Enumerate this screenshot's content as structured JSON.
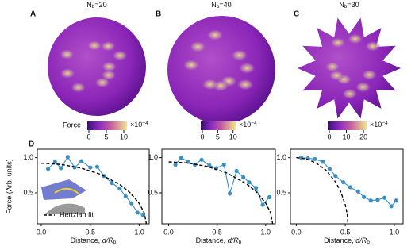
{
  "panels": [
    {
      "label": "A",
      "title": [
        "N",
        "b",
        "=20"
      ]
    },
    {
      "label": "B",
      "title": [
        "N",
        "b",
        "=40"
      ]
    },
    {
      "label": "C",
      "title": [
        "N",
        "b",
        "=30"
      ]
    }
  ],
  "colorbars": [
    {
      "label": "Force",
      "exponent": [
        "×10",
        "−4"
      ],
      "ticks": [
        0,
        5,
        10
      ]
    },
    {
      "exponent": [
        "×10",
        "−4"
      ],
      "ticks": [
        0,
        5,
        10
      ]
    },
    {
      "exponent": [
        "×10",
        "−4"
      ],
      "ticks": [
        0,
        10,
        20
      ]
    }
  ],
  "panel_d_label": "D",
  "chart_data": [
    {
      "type": "line",
      "ylabel": "Force (Arb. units)",
      "xlabel": [
        "Distance, ",
        "d/R",
        "b"
      ],
      "xlim": [
        -0.04,
        1.1
      ],
      "ylim": [
        0.06,
        1.12
      ],
      "xticks": [
        {
          "value": 0,
          "label": "0.0"
        },
        0.5,
        {
          "value": 1,
          "label": "1.0"
        }
      ],
      "yticks": [
        0.5,
        {
          "value": 1,
          "label": "1.0"
        }
      ],
      "legend": "lower left",
      "series": [
        {
          "color": "#3a8fc4",
          "marker": true,
          "x": [
            0.07,
            0.14,
            0.2,
            0.27,
            0.34,
            0.41,
            0.5,
            0.57,
            0.64,
            0.72,
            0.8,
            0.86,
            0.92,
            0.98,
            1.04
          ],
          "values": [
            0.84,
            0.94,
            0.85,
            1.01,
            0.86,
            0.95,
            0.86,
            0.87,
            0.74,
            0.64,
            0.56,
            0.45,
            0.35,
            0.22,
            0.18
          ]
        },
        {
          "name": "Hertzian fit",
          "color": "#000000",
          "dash": true,
          "x": [
            0,
            0.2,
            0.4,
            0.6,
            0.8,
            0.9,
            1.0,
            1.05,
            1.08
          ],
          "values": [
            0.92,
            0.904,
            0.854,
            0.765,
            0.618,
            0.509,
            0.348,
            0.215,
            0
          ]
        }
      ]
    },
    {
      "type": "line",
      "xlabel": [
        "Distance, ",
        "d/R",
        "b"
      ],
      "xlim": [
        -0.07,
        1.1
      ],
      "ylim": [
        0.06,
        1.12
      ],
      "xticks": [
        {
          "value": 0,
          "label": "0.0"
        },
        0.5,
        {
          "value": 1,
          "label": "1.0"
        }
      ],
      "yticks": [
        0.5,
        {
          "value": 1,
          "label": "1.0"
        }
      ],
      "series": [
        {
          "color": "#3a8fc4",
          "marker": true,
          "x": [
            0.07,
            0.13,
            0.2,
            0.27,
            0.34,
            0.42,
            0.49,
            0.57,
            0.63,
            0.7,
            0.77,
            0.83,
            0.9,
            0.97,
            1.04
          ],
          "values": [
            0.9,
            1.0,
            0.94,
            0.9,
            0.97,
            0.89,
            0.85,
            0.9,
            0.49,
            0.81,
            0.72,
            0.65,
            0.57,
            0.33,
            0.44
          ]
        },
        {
          "color": "#000000",
          "dash": true,
          "x": [
            0,
            0.2,
            0.4,
            0.6,
            0.8,
            0.9,
            1.0,
            1.05,
            1.08
          ],
          "values": [
            0.94,
            0.924,
            0.873,
            0.782,
            0.631,
            0.52,
            0.355,
            0.22,
            0
          ]
        }
      ]
    },
    {
      "type": "line",
      "xlabel": [
        "Distance, ",
        "d/R",
        "b"
      ],
      "xlim": [
        -0.06,
        1.09
      ],
      "ylim": [
        0.06,
        1.12
      ],
      "xticks": [
        {
          "value": 0,
          "label": "0.0"
        },
        0.5,
        {
          "value": 1,
          "label": "1.0"
        }
      ],
      "yticks": [
        0.5,
        {
          "value": 1,
          "label": "1.0"
        }
      ],
      "series": [
        {
          "color": "#3a8fc4",
          "marker": true,
          "x": [
            0.05,
            0.12,
            0.19,
            0.27,
            0.34,
            0.4,
            0.48,
            0.55,
            0.63,
            0.69,
            0.76,
            0.83,
            0.9,
            0.97,
            1.02
          ],
          "values": [
            1.0,
            0.99,
            0.98,
            0.94,
            0.84,
            0.74,
            0.65,
            0.58,
            0.52,
            0.44,
            0.39,
            0.4,
            0.43,
            0.31,
            0.39
          ]
        },
        {
          "color": "#000000",
          "dash": true,
          "x": [
            0,
            0.1,
            0.2,
            0.3,
            0.4,
            0.45,
            0.5,
            0.52,
            0.53
          ],
          "values": [
            1.0,
            0.982,
            0.926,
            0.824,
            0.656,
            0.528,
            0.332,
            0.193,
            0
          ]
        }
      ]
    }
  ]
}
